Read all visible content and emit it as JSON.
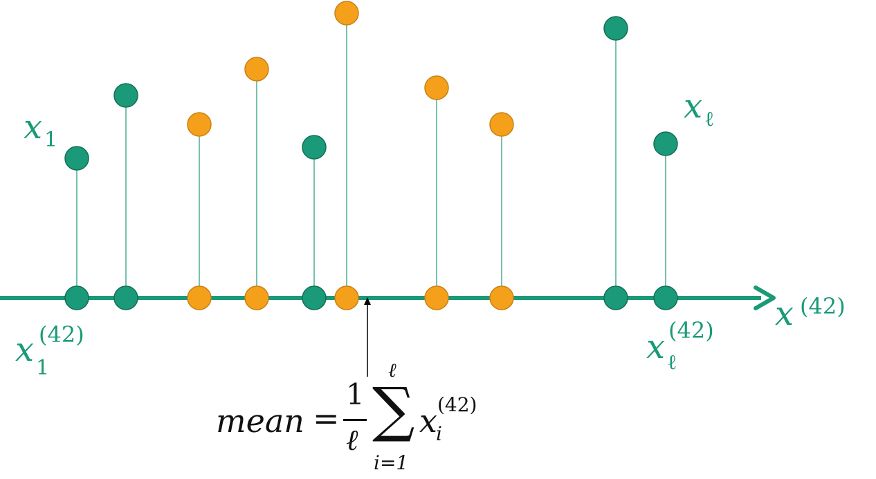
{
  "colors": {
    "axis": "#1a9a78",
    "group_a": "#1a9a78",
    "group_b": "#f5a01a",
    "group_b_stroke": "#c98014",
    "group_a_stroke": "#136e56",
    "text_green": "#1a9a78",
    "text_black": "#111111",
    "annotation_arrow": "#000000"
  },
  "axis": {
    "label_base": "x",
    "label_sup": "(42)"
  },
  "labels": {
    "x1_top_base": "x",
    "x1_top_sub": "1",
    "xl_top_base": "x",
    "xl_top_sub": "ℓ",
    "x1_bottom_base": "x",
    "x1_bottom_sub": "1",
    "x1_bottom_sup": "(42)",
    "xl_bottom_base": "x",
    "xl_bottom_sub": "ℓ",
    "xl_bottom_sup": "(42)"
  },
  "formula": {
    "lhs": "mean",
    "equals": "=",
    "numerator": "1",
    "denominator": "ℓ",
    "sum_symbol": "∑",
    "sum_upper": "ℓ",
    "sum_lower": "i=1",
    "term_base": "x",
    "term_sub": "i",
    "term_sup": "(42)"
  },
  "points": [
    {
      "group": "a",
      "value_rank": 0.5
    },
    {
      "group": "a",
      "value_rank": 0.7
    },
    {
      "group": "b",
      "value_rank": 0.61
    },
    {
      "group": "b",
      "value_rank": 0.8
    },
    {
      "group": "a",
      "value_rank": 0.53
    },
    {
      "group": "b",
      "value_rank": 1.0
    },
    {
      "group": "b",
      "value_rank": 0.73
    },
    {
      "group": "b",
      "value_rank": 0.61
    },
    {
      "group": "a",
      "value_rank": 0.95
    },
    {
      "group": "a",
      "value_rank": 0.54
    }
  ]
}
